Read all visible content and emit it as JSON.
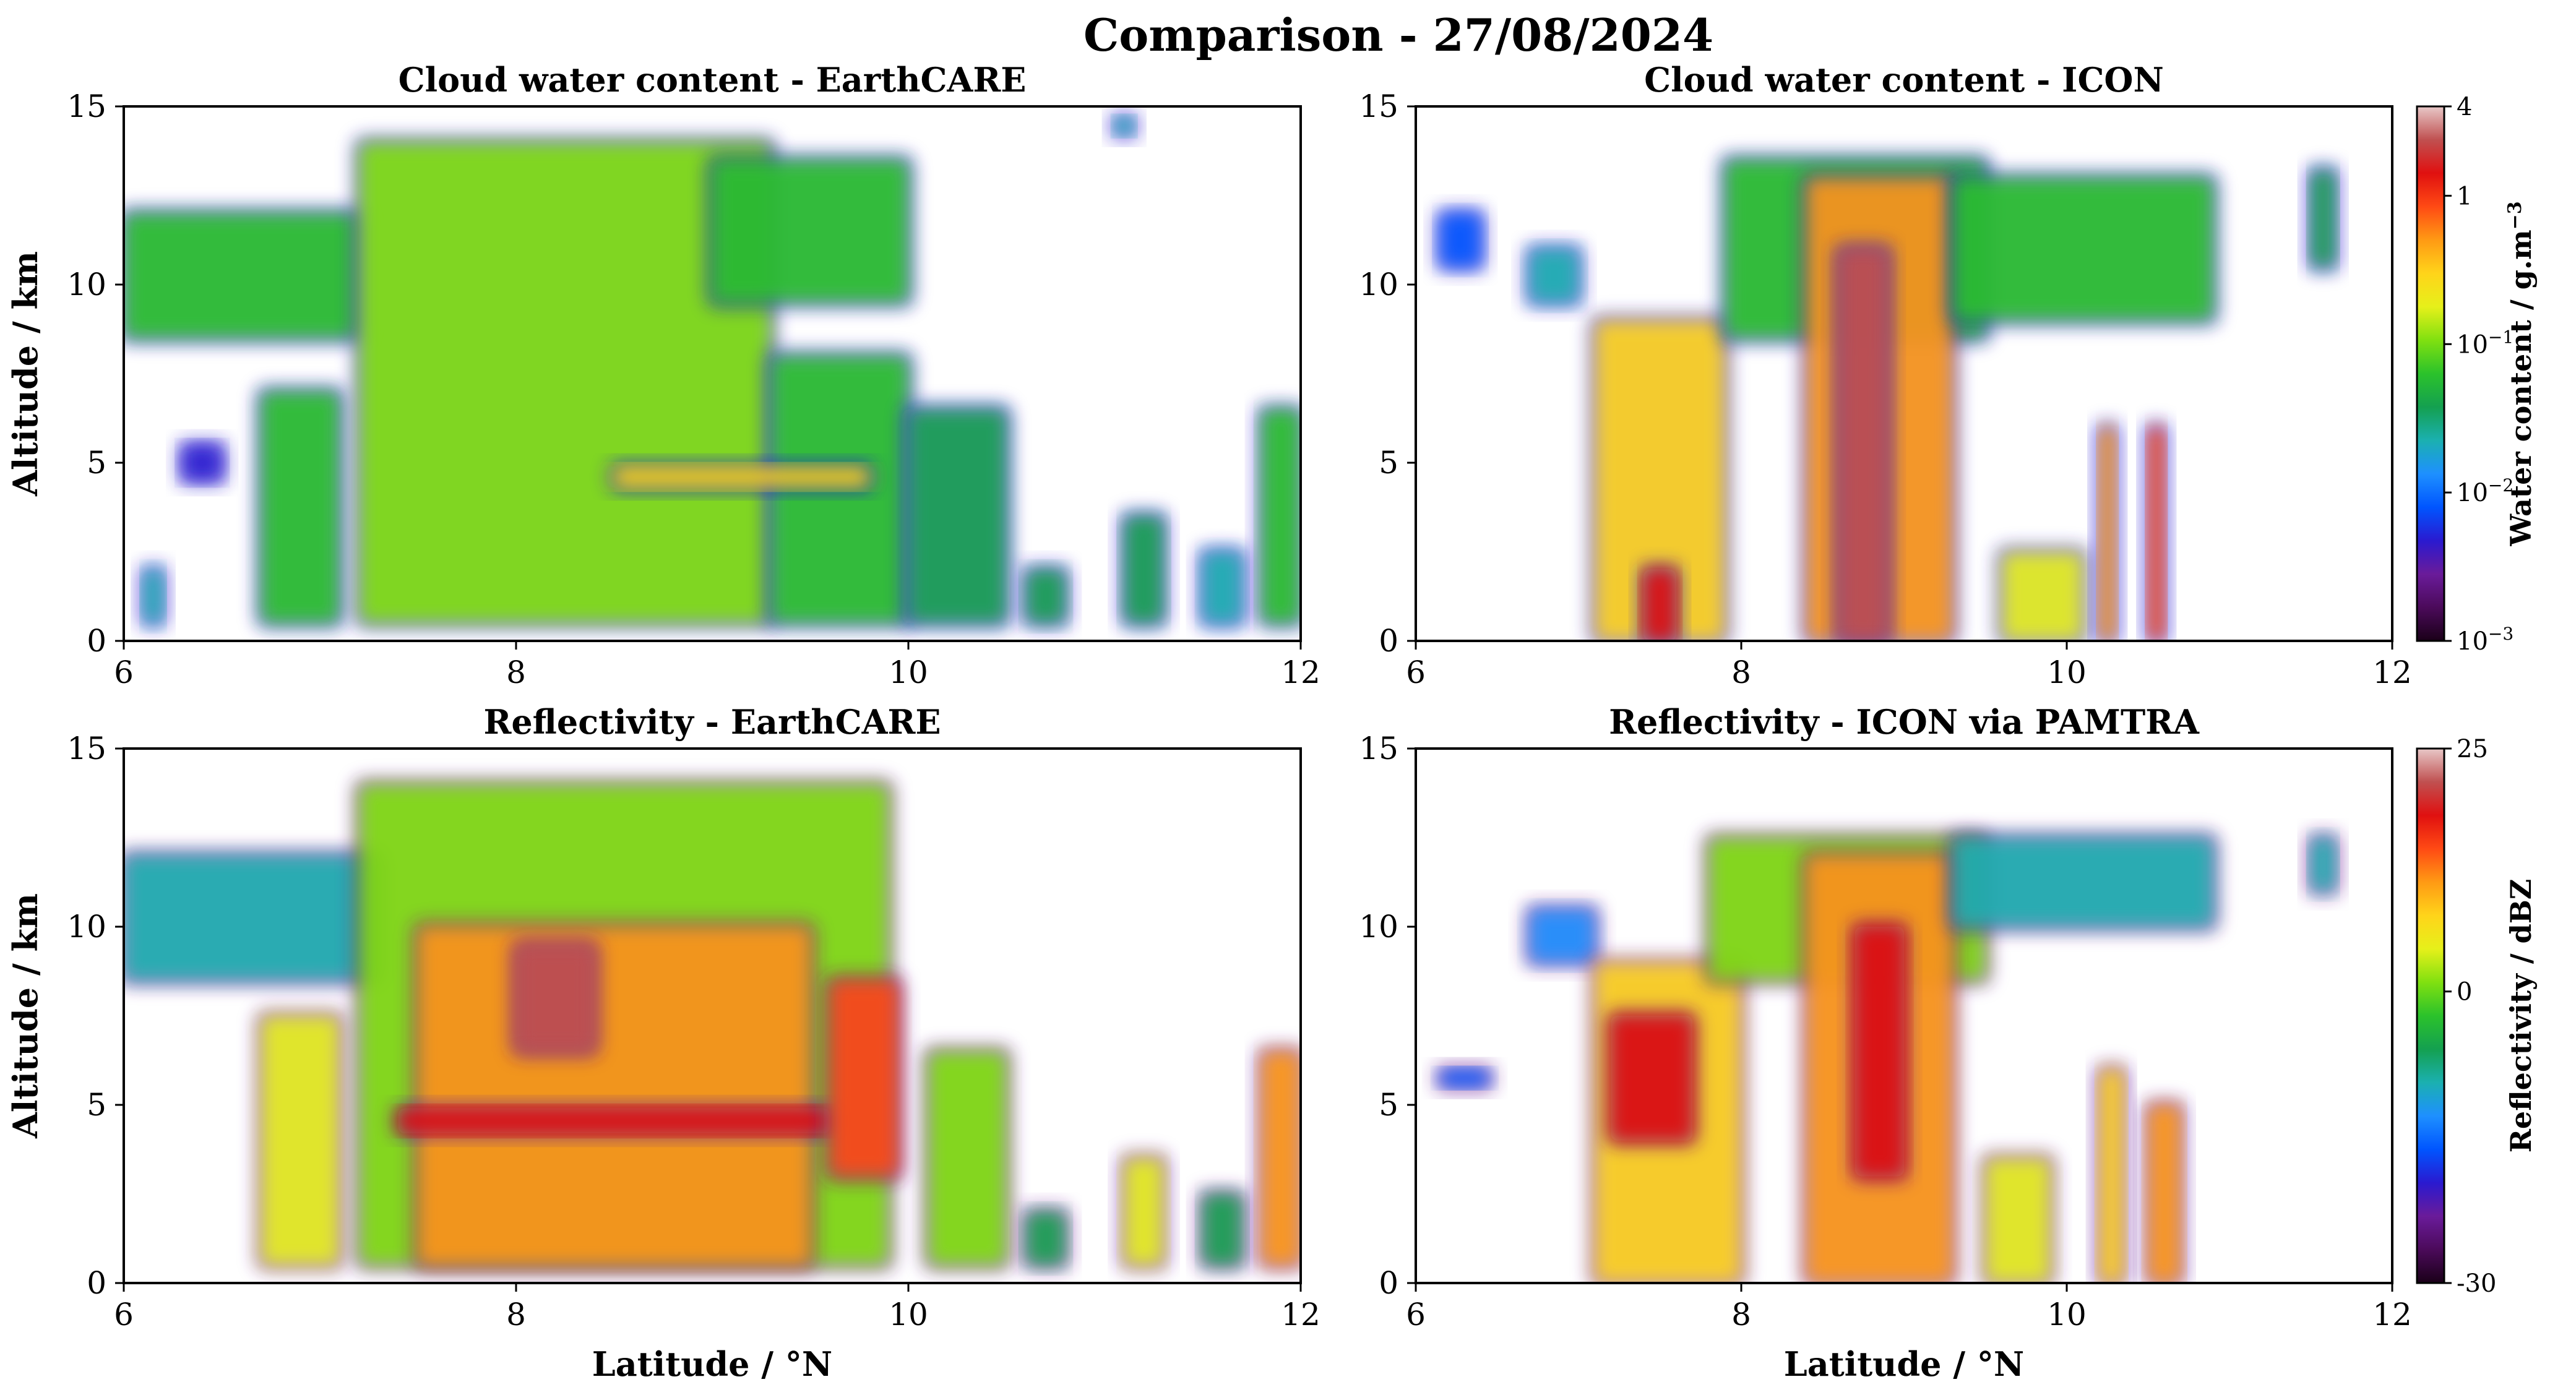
{
  "figure": {
    "title": "Comparison - 27/08/2024"
  },
  "colors": {
    "colormap": [
      "#1a0018",
      "#4b0a5a",
      "#6a1b9a",
      "#2a1ad0",
      "#0055ff",
      "#1e90ff",
      "#1bb0b0",
      "#14a050",
      "#2bc22b",
      "#80e010",
      "#e6f01a",
      "#ffd41a",
      "#ff9a14",
      "#ff4a14",
      "#e01010",
      "#c05050",
      "#e8c8c8"
    ]
  },
  "chart_data": [
    {
      "id": "cwc_earthcare",
      "type": "heatmap",
      "title": "Cloud water content - EarthCARE",
      "xlabel": "",
      "ylabel": "Altitude / km",
      "xlim": [
        6,
        12
      ],
      "ylim": [
        0,
        15
      ],
      "xticks": [
        6,
        8,
        10,
        12
      ],
      "yticks": [
        0,
        5,
        10,
        15
      ],
      "levels": [
        0.005,
        0.02,
        0.05,
        0.1,
        0.2
      ],
      "features": [
        {
          "x0": 6.0,
          "x1": 7.2,
          "y0": 8.5,
          "y1": 12.0,
          "value": 0.05
        },
        {
          "x0": 6.1,
          "x1": 6.2,
          "y0": 0.5,
          "y1": 2.0,
          "value": 0.02
        },
        {
          "x0": 6.3,
          "x1": 6.5,
          "y0": 4.5,
          "y1": 5.5,
          "value": 0.005
        },
        {
          "x0": 6.7,
          "x1": 7.1,
          "y0": 0.5,
          "y1": 7.0,
          "value": 0.05
        },
        {
          "x0": 7.2,
          "x1": 9.3,
          "y0": 0.5,
          "y1": 14.0,
          "value": 0.12
        },
        {
          "x0": 9.3,
          "x1": 10.0,
          "y0": 0.5,
          "y1": 8.0,
          "value": 0.08
        },
        {
          "x0": 9.0,
          "x1": 10.0,
          "y0": 9.5,
          "y1": 13.5,
          "value": 0.05
        },
        {
          "x0": 8.5,
          "x1": 9.8,
          "y0": 4.3,
          "y1": 4.9,
          "value": 0.25
        },
        {
          "x0": 10.0,
          "x1": 10.5,
          "y0": 0.5,
          "y1": 6.5,
          "value": 0.04
        },
        {
          "x0": 10.6,
          "x1": 10.8,
          "y0": 0.5,
          "y1": 2.0,
          "value": 0.03
        },
        {
          "x0": 11.05,
          "x1": 11.15,
          "y0": 14.2,
          "y1": 14.7,
          "value": 0.02
        },
        {
          "x0": 11.1,
          "x1": 11.3,
          "y0": 0.5,
          "y1": 3.5,
          "value": 0.03
        },
        {
          "x0": 11.5,
          "x1": 11.7,
          "y0": 0.5,
          "y1": 2.5,
          "value": 0.02
        },
        {
          "x0": 11.8,
          "x1": 12.0,
          "y0": 0.5,
          "y1": 6.5,
          "value": 0.06
        }
      ]
    },
    {
      "id": "cwc_icon",
      "type": "heatmap",
      "title": "Cloud water content - ICON",
      "xlabel": "",
      "ylabel": "",
      "xlim": [
        6,
        12
      ],
      "ylim": [
        0,
        15
      ],
      "xticks": [
        6,
        8,
        10,
        12
      ],
      "yticks": [
        0,
        5,
        10,
        15
      ],
      "colorbar": {
        "label": "Water content / g.m",
        "label_sup": "−3",
        "scale": "log",
        "range": [
          0.001,
          4
        ],
        "ticks": [
          {
            "value": 0.001,
            "base": "10",
            "exp": "−3"
          },
          {
            "value": 0.01,
            "base": "10",
            "exp": "−2"
          },
          {
            "value": 0.1,
            "base": "10",
            "exp": "−1"
          },
          {
            "value": 1,
            "base": "1",
            "exp": ""
          },
          {
            "value": 4,
            "base": "4",
            "exp": ""
          }
        ]
      },
      "features": [
        {
          "x0": 6.15,
          "x1": 6.4,
          "y0": 10.5,
          "y1": 12.0,
          "value": 0.01
        },
        {
          "x0": 6.7,
          "x1": 7.0,
          "y0": 9.5,
          "y1": 11.0,
          "value": 0.02
        },
        {
          "x0": 7.1,
          "x1": 7.9,
          "y0": 0.0,
          "y1": 9.0,
          "value": 0.3
        },
        {
          "x0": 7.4,
          "x1": 7.6,
          "y0": 0.0,
          "y1": 2.0,
          "value": 1.5
        },
        {
          "x0": 7.9,
          "x1": 9.5,
          "y0": 8.5,
          "y1": 13.5,
          "value": 0.08
        },
        {
          "x0": 8.4,
          "x1": 9.3,
          "y0": 0.0,
          "y1": 13.0,
          "value": 0.4
        },
        {
          "x0": 8.6,
          "x1": 8.9,
          "y0": 0.0,
          "y1": 11.0,
          "value": 2.0
        },
        {
          "x0": 9.3,
          "x1": 10.9,
          "y0": 9.0,
          "y1": 13.0,
          "value": 0.05
        },
        {
          "x0": 9.6,
          "x1": 10.1,
          "y0": 0.0,
          "y1": 2.5,
          "value": 0.2
        },
        {
          "x0": 10.2,
          "x1": 10.3,
          "y0": 0.0,
          "y1": 6.0,
          "value": 0.6
        },
        {
          "x0": 10.5,
          "x1": 10.6,
          "y0": 0.0,
          "y1": 6.0,
          "value": 1.0
        },
        {
          "x0": 11.5,
          "x1": 11.65,
          "y0": 10.5,
          "y1": 13.2,
          "value": 0.03
        }
      ]
    },
    {
      "id": "refl_earthcare",
      "type": "heatmap",
      "title": "Reflectivity - EarthCARE",
      "xlabel": "Latitude / °N",
      "ylabel": "Altitude / km",
      "xlim": [
        6,
        12
      ],
      "ylim": [
        0,
        15
      ],
      "xticks": [
        6,
        8,
        10,
        12
      ],
      "yticks": [
        0,
        5,
        10,
        15
      ],
      "levels": [
        -20,
        -10,
        0,
        10,
        18
      ],
      "features": [
        {
          "x0": 6.0,
          "x1": 7.3,
          "y0": 8.5,
          "y1": 12.0,
          "value": -10
        },
        {
          "x0": 6.7,
          "x1": 7.1,
          "y0": 0.5,
          "y1": 7.5,
          "value": 5
        },
        {
          "x0": 7.2,
          "x1": 9.9,
          "y0": 0.5,
          "y1": 14.0,
          "value": 0
        },
        {
          "x0": 7.5,
          "x1": 9.5,
          "y0": 0.5,
          "y1": 10.0,
          "value": 12
        },
        {
          "x0": 8.0,
          "x1": 8.4,
          "y0": 6.5,
          "y1": 9.5,
          "value": 20
        },
        {
          "x0": 7.4,
          "x1": 9.6,
          "y0": 4.2,
          "y1": 4.9,
          "value": 19
        },
        {
          "x0": 9.6,
          "x1": 9.95,
          "y0": 3.0,
          "y1": 8.5,
          "value": 15
        },
        {
          "x0": 10.1,
          "x1": 10.5,
          "y0": 0.5,
          "y1": 6.5,
          "value": 2
        },
        {
          "x0": 10.6,
          "x1": 10.8,
          "y0": 0.5,
          "y1": 2.0,
          "value": -5
        },
        {
          "x0": 11.1,
          "x1": 11.3,
          "y0": 0.5,
          "y1": 3.5,
          "value": 5
        },
        {
          "x0": 11.5,
          "x1": 11.7,
          "y0": 0.5,
          "y1": 2.5,
          "value": -5
        },
        {
          "x0": 11.8,
          "x1": 12.0,
          "y0": 0.5,
          "y1": 6.5,
          "value": 10
        }
      ]
    },
    {
      "id": "refl_icon",
      "type": "heatmap",
      "title": "Reflectivity - ICON via PAMTRA",
      "xlabel": "Latitude / °N",
      "ylabel": "",
      "xlim": [
        6,
        12
      ],
      "ylim": [
        0,
        15
      ],
      "xticks": [
        6,
        8,
        10,
        12
      ],
      "yticks": [
        0,
        5,
        10,
        15
      ],
      "colorbar": {
        "label": "Reflectivity / dBZ",
        "label_sup": "",
        "scale": "linear",
        "range": [
          -30,
          25
        ],
        "ticks": [
          {
            "value": -30,
            "base": "-30",
            "exp": ""
          },
          {
            "value": 0,
            "base": "0",
            "exp": ""
          },
          {
            "value": 25,
            "base": "25",
            "exp": ""
          }
        ]
      },
      "features": [
        {
          "x0": 6.15,
          "x1": 6.45,
          "y0": 5.5,
          "y1": 6.0,
          "value": -15
        },
        {
          "x0": 6.7,
          "x1": 7.1,
          "y0": 9.0,
          "y1": 10.5,
          "value": -12
        },
        {
          "x0": 7.1,
          "x1": 8.0,
          "y0": 0.0,
          "y1": 9.0,
          "value": 8
        },
        {
          "x0": 7.2,
          "x1": 7.7,
          "y0": 4.0,
          "y1": 7.5,
          "value": 17
        },
        {
          "x0": 7.8,
          "x1": 9.5,
          "y0": 8.5,
          "y1": 12.5,
          "value": 0
        },
        {
          "x0": 8.4,
          "x1": 9.3,
          "y0": 0.0,
          "y1": 12.0,
          "value": 10
        },
        {
          "x0": 8.7,
          "x1": 9.0,
          "y0": 3.0,
          "y1": 10.0,
          "value": 19
        },
        {
          "x0": 9.3,
          "x1": 10.9,
          "y0": 10.0,
          "y1": 12.5,
          "value": -8
        },
        {
          "x0": 9.5,
          "x1": 9.9,
          "y0": 0.0,
          "y1": 3.5,
          "value": 5
        },
        {
          "x0": 10.2,
          "x1": 10.35,
          "y0": 0.0,
          "y1": 6.0,
          "value": 8
        },
        {
          "x0": 10.5,
          "x1": 10.7,
          "y0": 0.0,
          "y1": 5.0,
          "value": 12
        },
        {
          "x0": 11.5,
          "x1": 11.65,
          "y0": 11.0,
          "y1": 12.5,
          "value": -10
        }
      ]
    }
  ]
}
